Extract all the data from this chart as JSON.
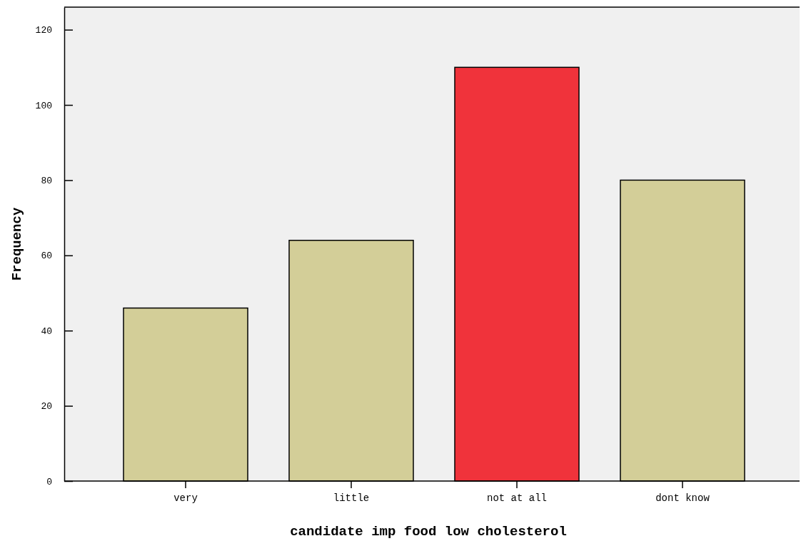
{
  "chart_data": {
    "type": "bar",
    "xlabel": "candidate imp food low cholesterol",
    "ylabel": "Frequency",
    "categories": [
      "very",
      "little",
      "not at all",
      "dont know"
    ],
    "values": [
      46,
      64,
      110,
      80
    ],
    "colors": [
      "#d3ce98",
      "#d3ce98",
      "#f0333b",
      "#d3ce98"
    ],
    "ylim": [
      0,
      126
    ],
    "yticks": [
      0,
      20,
      40,
      60,
      80,
      100,
      120
    ],
    "grid": false,
    "legend": false
  }
}
